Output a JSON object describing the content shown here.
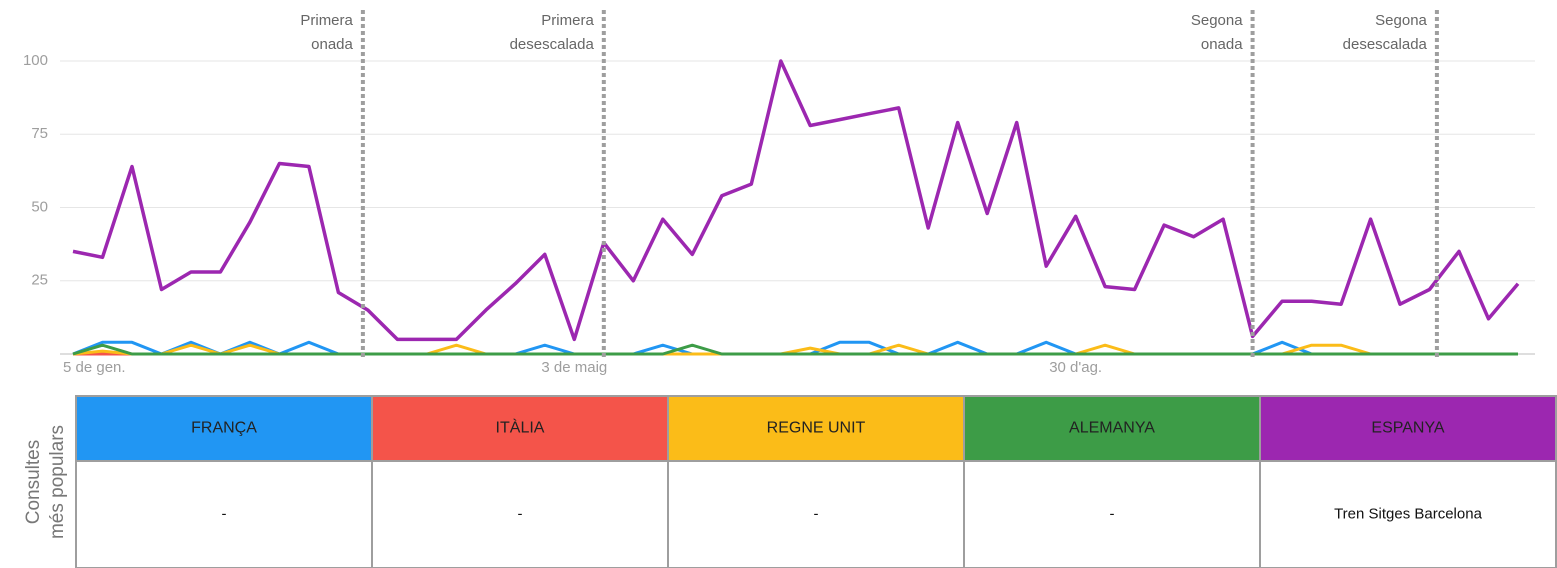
{
  "chart_data": {
    "type": "line",
    "categories": [
      "5 de gen.",
      null,
      null,
      null,
      null,
      null,
      null,
      null,
      null,
      null,
      null,
      null,
      null,
      null,
      null,
      null,
      null,
      "3 de maig",
      null,
      null,
      null,
      null,
      null,
      null,
      null,
      null,
      null,
      null,
      null,
      null,
      null,
      null,
      null,
      null,
      "30 d'ag.",
      null,
      null,
      null,
      null,
      null,
      null,
      null,
      null,
      null,
      null,
      null,
      null,
      null,
      null,
      null
    ],
    "series": [
      {
        "name": "FRANÇA",
        "color": "#2196f3",
        "values": [
          0,
          4,
          4,
          0,
          4,
          0,
          4,
          0,
          4,
          0,
          0,
          0,
          0,
          0,
          0,
          0,
          3,
          0,
          0,
          0,
          3,
          0,
          0,
          0,
          0,
          0,
          4,
          4,
          0,
          0,
          4,
          0,
          0,
          4,
          0,
          0,
          0,
          0,
          0,
          0,
          0,
          4,
          0,
          0,
          0,
          0,
          0,
          0,
          0,
          0
        ]
      },
      {
        "name": "ITÀLIA",
        "color": "#f4544a",
        "values": [
          0,
          0,
          0,
          0,
          0,
          0,
          0,
          0,
          0,
          0,
          0,
          0,
          0,
          0,
          0,
          0,
          0,
          0,
          0,
          0,
          0,
          0,
          0,
          0,
          0,
          0,
          0,
          0,
          0,
          0,
          0,
          0,
          0,
          0,
          0,
          0,
          0,
          0,
          0,
          0,
          0,
          0,
          0,
          0,
          0,
          0,
          0,
          0,
          0,
          0
        ]
      },
      {
        "name": "REGNE UNIT",
        "color": "#fbbc18",
        "values": [
          0,
          1,
          0,
          0,
          3,
          0,
          3,
          0,
          0,
          0,
          0,
          0,
          0,
          3,
          0,
          0,
          0,
          0,
          0,
          0,
          0,
          0,
          0,
          0,
          0,
          2,
          0,
          0,
          3,
          0,
          0,
          0,
          0,
          0,
          0,
          3,
          0,
          0,
          0,
          0,
          0,
          0,
          3,
          3,
          0,
          0,
          0,
          0,
          0,
          0
        ]
      },
      {
        "name": "ALEMANYA",
        "color": "#3d9c47",
        "values": [
          0,
          3,
          0,
          0,
          0,
          0,
          0,
          0,
          0,
          0,
          0,
          0,
          0,
          0,
          0,
          0,
          0,
          0,
          0,
          0,
          0,
          3,
          0,
          0,
          0,
          0,
          0,
          0,
          0,
          0,
          0,
          0,
          0,
          0,
          0,
          0,
          0,
          0,
          0,
          0,
          0,
          0,
          0,
          0,
          0,
          0,
          0,
          0,
          0,
          0
        ]
      },
      {
        "name": "ESPANYA",
        "color": "#9c27b0",
        "values": [
          35,
          33,
          64,
          22,
          28,
          28,
          45,
          65,
          64,
          21,
          15,
          5,
          5,
          5,
          15,
          24,
          34,
          5,
          38,
          25,
          46,
          34,
          54,
          58,
          100,
          78,
          80,
          82,
          84,
          43,
          79,
          48,
          79,
          30,
          47,
          23,
          22,
          44,
          40,
          46,
          6,
          18,
          18,
          17,
          46,
          17,
          22,
          35,
          12,
          24
        ]
      }
    ],
    "ylim": [
      0,
      100
    ],
    "yticks": [
      25,
      50,
      75,
      100
    ],
    "grid": true,
    "annotations": [
      {
        "at": 9.83,
        "lines": [
          "Primera",
          "onada"
        ]
      },
      {
        "at": 18,
        "lines": [
          "Primera",
          "desescalada"
        ]
      },
      {
        "at": 40,
        "lines": [
          "Segona",
          "onada"
        ]
      },
      {
        "at": 46.25,
        "lines": [
          "Segona",
          "desescalada"
        ]
      }
    ]
  },
  "table": {
    "row_label": [
      "Consultes",
      "més populars"
    ],
    "top_queries": [
      "-",
      "-",
      "-",
      "-",
      "Tren Sitges Barcelona"
    ]
  }
}
